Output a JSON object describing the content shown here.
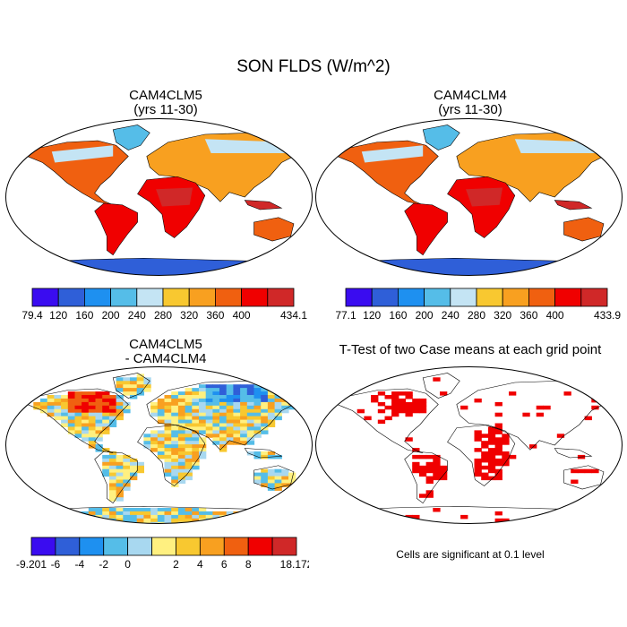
{
  "title": "SON FLDS (W/m^2)",
  "panels": [
    {
      "title_line1": "CAM4CLM5",
      "title_line2": "(yrs 11-30)",
      "colorbar": {
        "colors": [
          "#3a0cf0",
          "#2f5fd8",
          "#1e90f0",
          "#55bde8",
          "#c4e4f4",
          "#f8c830",
          "#f8a020",
          "#f06010",
          "#f00000",
          "#d02828"
        ],
        "labels": [
          "79.4",
          "120",
          "160",
          "200",
          "240",
          "280",
          "320",
          "360",
          "400",
          "434.1"
        ]
      }
    },
    {
      "title_line1": "CAM4CLM4",
      "title_line2": "(yrs 11-30)",
      "colorbar": {
        "colors": [
          "#3a0cf0",
          "#2f5fd8",
          "#1e90f0",
          "#55bde8",
          "#c4e4f4",
          "#f8c830",
          "#f8a020",
          "#f06010",
          "#f00000",
          "#d02828"
        ],
        "labels": [
          "77.1",
          "120",
          "160",
          "200",
          "240",
          "280",
          "320",
          "360",
          "400",
          "433.9"
        ]
      }
    },
    {
      "title_line1": "CAM4CLM5",
      "title_line2": "- CAM4CLM4",
      "colorbar": {
        "colors": [
          "#3a0cf0",
          "#2f5fd8",
          "#1e90f0",
          "#55bde8",
          "#a8d8f0",
          "#fff080",
          "#f8c830",
          "#f8a020",
          "#f06010",
          "#f00000",
          "#d02828"
        ],
        "labels": [
          "-9.201",
          "-6",
          "-4",
          "-2",
          "0",
          "2",
          "4",
          "6",
          "8",
          "18.172"
        ]
      }
    },
    {
      "title_line1": "T-Test of two Case means at each grid point",
      "note": "Cells are significant at 0.1 level"
    }
  ]
}
